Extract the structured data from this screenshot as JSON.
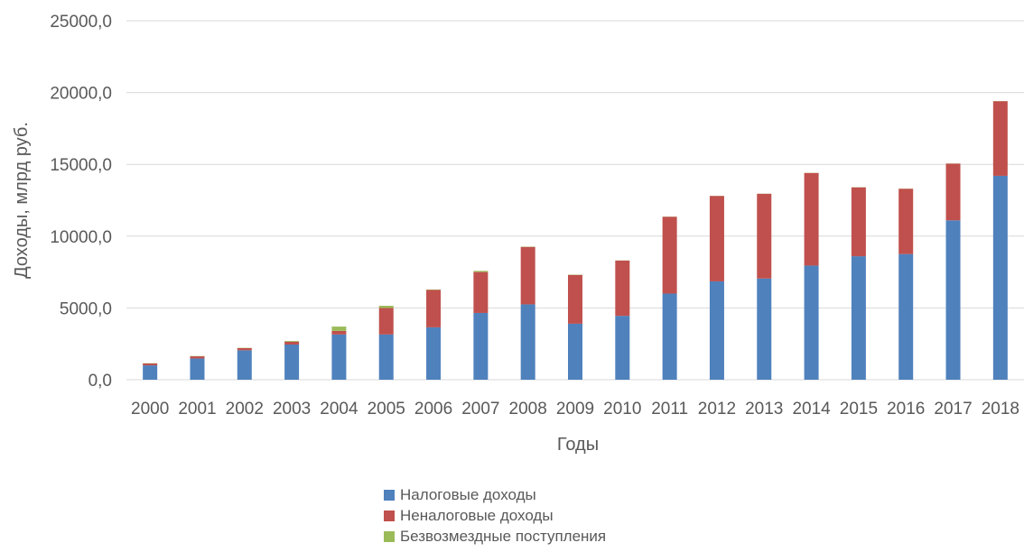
{
  "chart_data": {
    "type": "bar",
    "stacked": true,
    "ylabel": "Доходы, млрд руб.",
    "xlabel": "Годы",
    "ylim": [
      0,
      25000
    ],
    "yticks": [
      0,
      5000,
      10000,
      15000,
      20000,
      25000
    ],
    "ytick_labels": [
      "0,0",
      "5000,0",
      "10000,0",
      "15000,0",
      "20000,0",
      "25000,0"
    ],
    "grid": true,
    "legend_position": "bottom",
    "categories": [
      "2000",
      "2001",
      "2002",
      "2003",
      "2004",
      "2005",
      "2006",
      "2007",
      "2008",
      "2009",
      "2010",
      "2011",
      "2012",
      "2013",
      "2014",
      "2015",
      "2016",
      "2017",
      "2018"
    ],
    "series": [
      {
        "name": "Налоговые доходы",
        "color": "#4f81bd",
        "values": [
          1000,
          1480,
          2050,
          2450,
          3150,
          3150,
          3650,
          4650,
          5250,
          3900,
          4450,
          6000,
          6850,
          7050,
          7950,
          8600,
          8750,
          11100,
          14200
        ]
      },
      {
        "name": "Неналоговые доходы",
        "color": "#c0504d",
        "values": [
          130,
          150,
          150,
          200,
          250,
          1850,
          2600,
          2850,
          4000,
          3400,
          3850,
          5350,
          5950,
          5900,
          6450,
          4800,
          4550,
          3950,
          5200
        ]
      },
      {
        "name": "Безвозмездные поступления",
        "color": "#9bbb59",
        "values": [
          20,
          20,
          20,
          50,
          300,
          150,
          30,
          80,
          20,
          20,
          10,
          10,
          10,
          10,
          10,
          10,
          10,
          10,
          10
        ]
      }
    ]
  }
}
